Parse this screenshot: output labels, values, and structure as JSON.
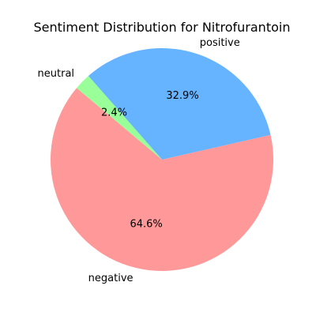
{
  "chart_data": {
    "type": "pie",
    "title": "Sentiment Distribution for Nitrofurantoin",
    "start_angle_deg": 140,
    "direction": "counterclockwise",
    "slices": [
      {
        "label": "negative",
        "value": 64.6,
        "percent_label": "64.6%",
        "color": "#ff9999"
      },
      {
        "label": "positive",
        "value": 32.9,
        "percent_label": "32.9%",
        "color": "#66b3ff"
      },
      {
        "label": "neutral",
        "value": 2.4,
        "percent_label": "2.4%",
        "color": "#99ff99"
      }
    ]
  }
}
